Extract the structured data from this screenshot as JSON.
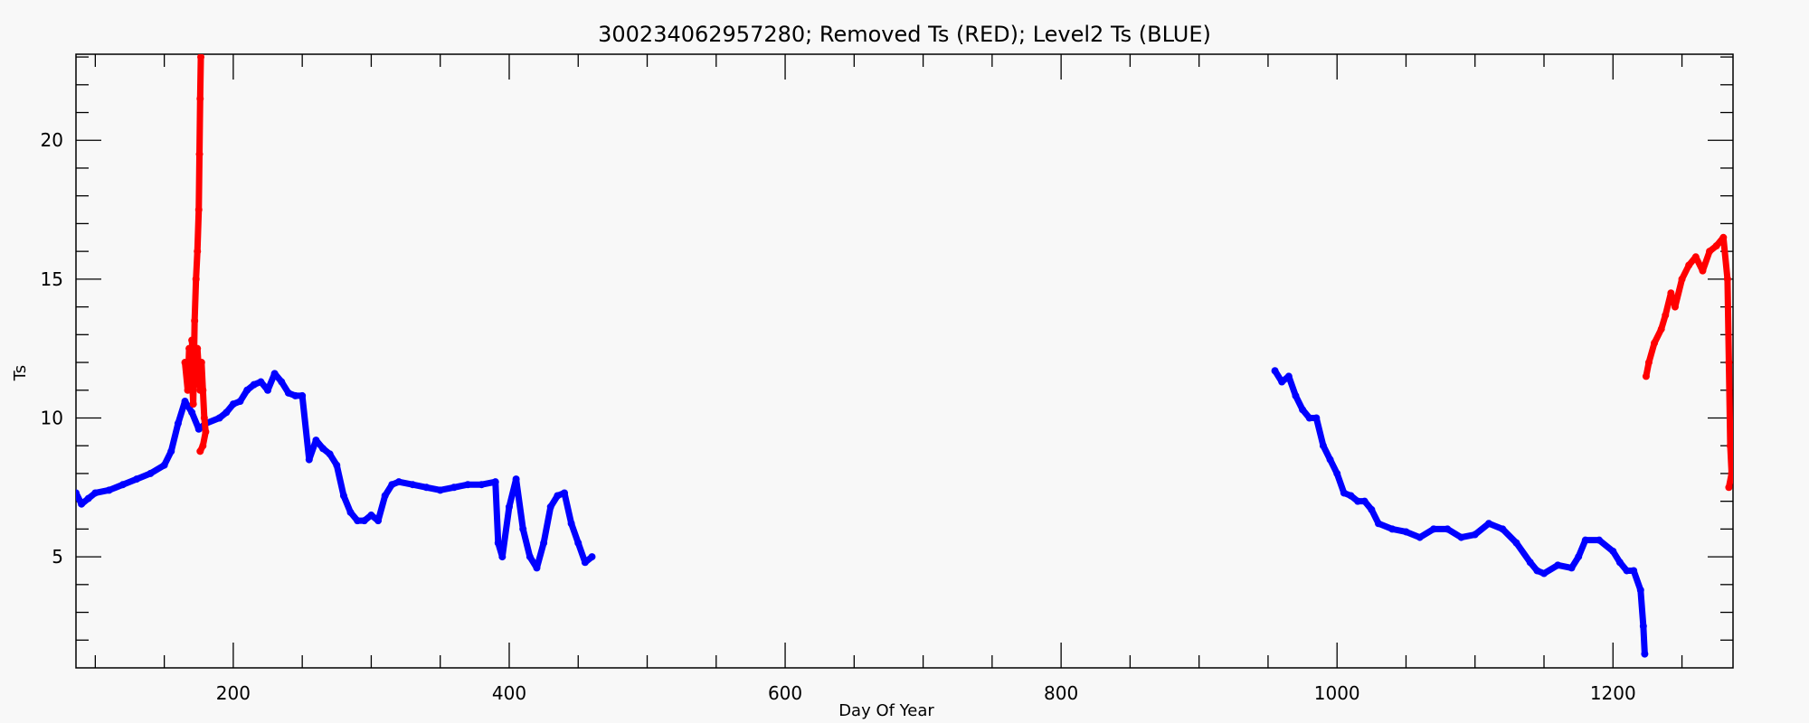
{
  "chart_data": {
    "type": "scatter",
    "title": "300234062957280; Removed Ts (RED); Level2 Ts (BLUE)",
    "xlabel": "Day Of Year",
    "ylabel": "Ts",
    "xlim": [
      86,
      1287
    ],
    "ylim": [
      1,
      23.1
    ],
    "xticks": [
      200,
      400,
      600,
      800,
      1000,
      1200
    ],
    "yticks": [
      5,
      10,
      15,
      20
    ],
    "grid": false,
    "legend": "none",
    "series": [
      {
        "name": "Level2 Ts (BLUE)",
        "color": "#0000ff",
        "segments": [
          [
            [
              86,
              7.3
            ],
            [
              90,
              6.9
            ],
            [
              95,
              7.1
            ],
            [
              100,
              7.3
            ],
            [
              110,
              7.4
            ],
            [
              120,
              7.6
            ],
            [
              130,
              7.8
            ],
            [
              140,
              8.0
            ],
            [
              150,
              8.3
            ],
            [
              155,
              8.8
            ],
            [
              160,
              9.8
            ],
            [
              165,
              10.6
            ],
            [
              170,
              10.2
            ],
            [
              175,
              9.6
            ],
            [
              180,
              9.8
            ],
            [
              190,
              10.0
            ],
            [
              195,
              10.2
            ],
            [
              200,
              10.5
            ],
            [
              205,
              10.6
            ],
            [
              210,
              11.0
            ],
            [
              215,
              11.2
            ],
            [
              220,
              11.3
            ],
            [
              225,
              11.0
            ],
            [
              230,
              11.6
            ],
            [
              235,
              11.3
            ],
            [
              240,
              10.9
            ],
            [
              245,
              10.8
            ],
            [
              250,
              10.8
            ],
            [
              255,
              8.5
            ],
            [
              260,
              9.2
            ],
            [
              265,
              8.9
            ],
            [
              270,
              8.7
            ],
            [
              275,
              8.3
            ],
            [
              280,
              7.2
            ],
            [
              285,
              6.6
            ],
            [
              290,
              6.3
            ],
            [
              295,
              6.3
            ],
            [
              300,
              6.5
            ],
            [
              305,
              6.3
            ],
            [
              310,
              7.2
            ],
            [
              315,
              7.6
            ],
            [
              320,
              7.7
            ],
            [
              330,
              7.6
            ],
            [
              340,
              7.5
            ],
            [
              350,
              7.4
            ],
            [
              360,
              7.5
            ],
            [
              370,
              7.6
            ],
            [
              380,
              7.6
            ],
            [
              390,
              7.7
            ],
            [
              392,
              5.5
            ],
            [
              395,
              5.0
            ],
            [
              400,
              6.8
            ],
            [
              405,
              7.8
            ],
            [
              410,
              6.0
            ],
            [
              415,
              5.0
            ],
            [
              420,
              4.6
            ],
            [
              425,
              5.5
            ],
            [
              430,
              6.8
            ],
            [
              435,
              7.2
            ],
            [
              440,
              7.3
            ],
            [
              445,
              6.2
            ],
            [
              450,
              5.5
            ],
            [
              455,
              4.8
            ],
            [
              460,
              5.0
            ]
          ],
          [
            [
              955,
              11.7
            ],
            [
              960,
              11.3
            ],
            [
              965,
              11.5
            ],
            [
              970,
              10.8
            ],
            [
              975,
              10.3
            ],
            [
              980,
              10.0
            ],
            [
              985,
              10.0
            ],
            [
              990,
              9.0
            ],
            [
              995,
              8.5
            ],
            [
              1000,
              8.0
            ],
            [
              1005,
              7.3
            ],
            [
              1010,
              7.2
            ],
            [
              1015,
              7.0
            ],
            [
              1020,
              7.0
            ],
            [
              1025,
              6.7
            ],
            [
              1030,
              6.2
            ],
            [
              1040,
              6.0
            ],
            [
              1050,
              5.9
            ],
            [
              1060,
              5.7
            ],
            [
              1070,
              6.0
            ],
            [
              1080,
              6.0
            ],
            [
              1090,
              5.7
            ],
            [
              1100,
              5.8
            ],
            [
              1110,
              6.2
            ],
            [
              1120,
              6.0
            ],
            [
              1130,
              5.5
            ],
            [
              1140,
              4.8
            ],
            [
              1145,
              4.5
            ],
            [
              1150,
              4.4
            ],
            [
              1160,
              4.7
            ],
            [
              1170,
              4.6
            ],
            [
              1175,
              5.0
            ],
            [
              1180,
              5.6
            ],
            [
              1190,
              5.6
            ],
            [
              1200,
              5.2
            ],
            [
              1205,
              4.8
            ],
            [
              1210,
              4.5
            ],
            [
              1215,
              4.5
            ],
            [
              1220,
              3.8
            ],
            [
              1222,
              2.5
            ],
            [
              1223,
              1.5
            ]
          ]
        ]
      },
      {
        "name": "Removed Ts (RED)",
        "color": "#ff0000",
        "segments": [
          [
            [
              165,
              12.0
            ],
            [
              167,
              11.0
            ],
            [
              168,
              12.5
            ],
            [
              170,
              11.5
            ],
            [
              171,
              10.5
            ],
            [
              172,
              13.5
            ],
            [
              173,
              15.0
            ],
            [
              174,
              16.0
            ],
            [
              175,
              17.5
            ],
            [
              175.5,
              19.5
            ],
            [
              176,
              21.5
            ],
            [
              176.5,
              23.0
            ]
          ],
          [
            [
              170,
              12.8
            ],
            [
              172,
              11.2
            ],
            [
              174,
              12.5
            ],
            [
              176,
              11.0
            ],
            [
              177,
              12.0
            ],
            [
              178,
              11.0
            ],
            [
              179,
              10.0
            ],
            [
              180,
              9.5
            ],
            [
              178,
              9.0
            ],
            [
              176,
              8.8
            ]
          ],
          [
            [
              1224,
              11.5
            ],
            [
              1226,
              12.0
            ],
            [
              1230,
              12.7
            ],
            [
              1235,
              13.2
            ],
            [
              1238,
              13.7
            ],
            [
              1242,
              14.5
            ],
            [
              1245,
              14.0
            ],
            [
              1250,
              15.0
            ],
            [
              1255,
              15.5
            ],
            [
              1260,
              15.8
            ],
            [
              1265,
              15.3
            ],
            [
              1270,
              16.0
            ],
            [
              1275,
              16.2
            ],
            [
              1280,
              16.5
            ],
            [
              1283,
              15.0
            ],
            [
              1284,
              12.0
            ],
            [
              1285,
              9.0
            ],
            [
              1286,
              8.0
            ],
            [
              1284,
              7.5
            ]
          ]
        ]
      }
    ]
  }
}
